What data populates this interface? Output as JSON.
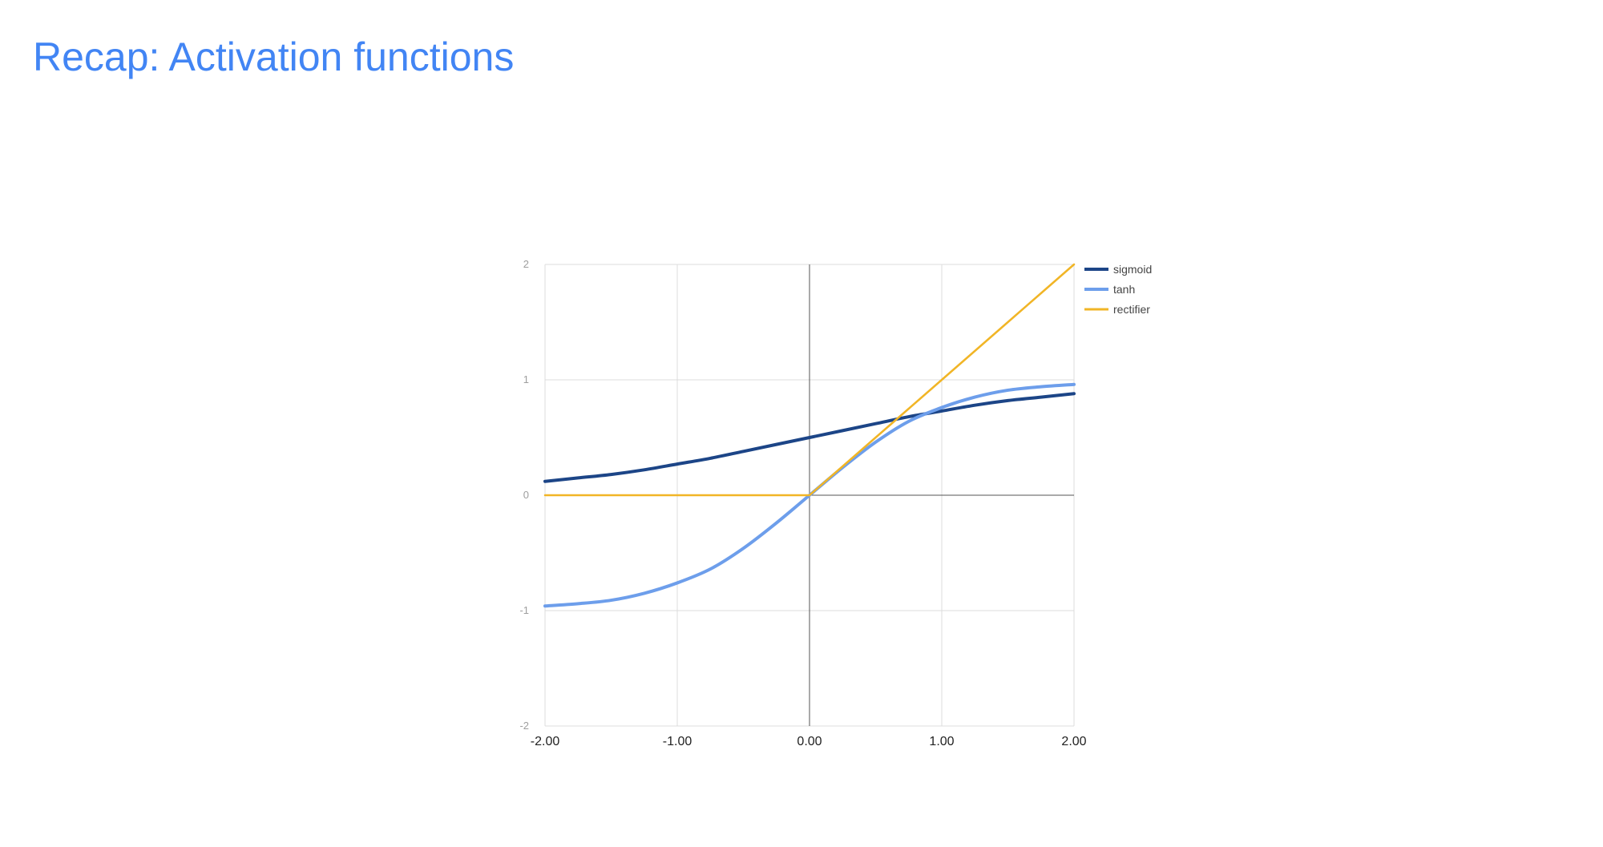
{
  "slide": {
    "title": "Recap: Activation functions"
  },
  "chart_data": {
    "type": "line",
    "xlim": [
      -2,
      2
    ],
    "ylim": [
      -2,
      2
    ],
    "x_ticks": [
      -2,
      -1,
      0,
      1,
      2
    ],
    "x_tick_labels": [
      "-2.00",
      "-1.00",
      "0.00",
      "1.00",
      "2.00"
    ],
    "y_ticks": [
      2,
      1,
      0,
      -1,
      -2
    ],
    "y_tick_labels": [
      "2",
      "1",
      "0",
      "-1",
      "-2"
    ],
    "grid": true,
    "legend_position": "right",
    "x": [
      -2.0,
      -1.75,
      -1.5,
      -1.25,
      -1.0,
      -0.75,
      -0.5,
      -0.25,
      0.0,
      0.25,
      0.5,
      0.75,
      1.0,
      1.25,
      1.5,
      1.75,
      2.0
    ],
    "series": [
      {
        "name": "sigmoid",
        "color": "#1c4587",
        "y": [
          0.12,
          0.15,
          0.18,
          0.22,
          0.27,
          0.32,
          0.38,
          0.44,
          0.5,
          0.56,
          0.62,
          0.68,
          0.73,
          0.78,
          0.82,
          0.85,
          0.88
        ]
      },
      {
        "name": "tanh",
        "color": "#6d9eeb",
        "y": [
          -0.96,
          -0.94,
          -0.91,
          -0.85,
          -0.76,
          -0.64,
          -0.46,
          -0.24,
          0.0,
          0.24,
          0.46,
          0.64,
          0.76,
          0.85,
          0.91,
          0.94,
          0.96
        ]
      },
      {
        "name": "rectifier",
        "color": "#f1b526",
        "y": [
          0,
          0,
          0,
          0,
          0,
          0,
          0,
          0,
          0,
          0.25,
          0.5,
          0.75,
          1.0,
          1.25,
          1.5,
          1.75,
          2.0
        ]
      }
    ]
  }
}
